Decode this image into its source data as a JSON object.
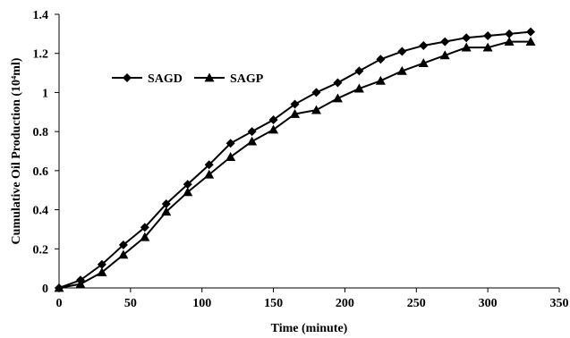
{
  "chart_data": {
    "type": "line",
    "title": "",
    "xlabel": "Time (minute)",
    "ylabel": "Cumulative Oil Production (10⁴ml)",
    "xlim": [
      0,
      350
    ],
    "ylim": [
      0,
      1.4
    ],
    "x_ticks": [
      "0",
      "50",
      "100",
      "150",
      "200",
      "250",
      "300",
      "350"
    ],
    "y_ticks": [
      "0",
      "0.2",
      "0.4",
      "0.6",
      "0.8",
      "1",
      "1.2",
      "1.4"
    ],
    "grid": false,
    "legend_position": "upper-left",
    "series": [
      {
        "name": "SAGD",
        "marker": "diamond",
        "color": "#000000",
        "x": [
          0,
          15,
          30,
          45,
          60,
          75,
          90,
          105,
          120,
          135,
          150,
          165,
          180,
          195,
          210,
          225,
          240,
          255,
          270,
          285,
          300,
          315,
          330
        ],
        "y": [
          0,
          0.04,
          0.12,
          0.22,
          0.31,
          0.43,
          0.53,
          0.63,
          0.74,
          0.8,
          0.86,
          0.94,
          1.0,
          1.05,
          1.11,
          1.17,
          1.21,
          1.24,
          1.26,
          1.28,
          1.29,
          1.3,
          1.31
        ]
      },
      {
        "name": "SAGP",
        "marker": "triangle",
        "color": "#000000",
        "x": [
          0,
          15,
          30,
          45,
          60,
          75,
          90,
          105,
          120,
          135,
          150,
          165,
          180,
          195,
          210,
          225,
          240,
          255,
          270,
          285,
          300,
          315,
          330
        ],
        "y": [
          0,
          0.02,
          0.08,
          0.17,
          0.26,
          0.39,
          0.49,
          0.58,
          0.67,
          0.75,
          0.81,
          0.89,
          0.91,
          0.97,
          1.02,
          1.06,
          1.11,
          1.15,
          1.19,
          1.23,
          1.23,
          1.26,
          1.26
        ]
      }
    ]
  }
}
